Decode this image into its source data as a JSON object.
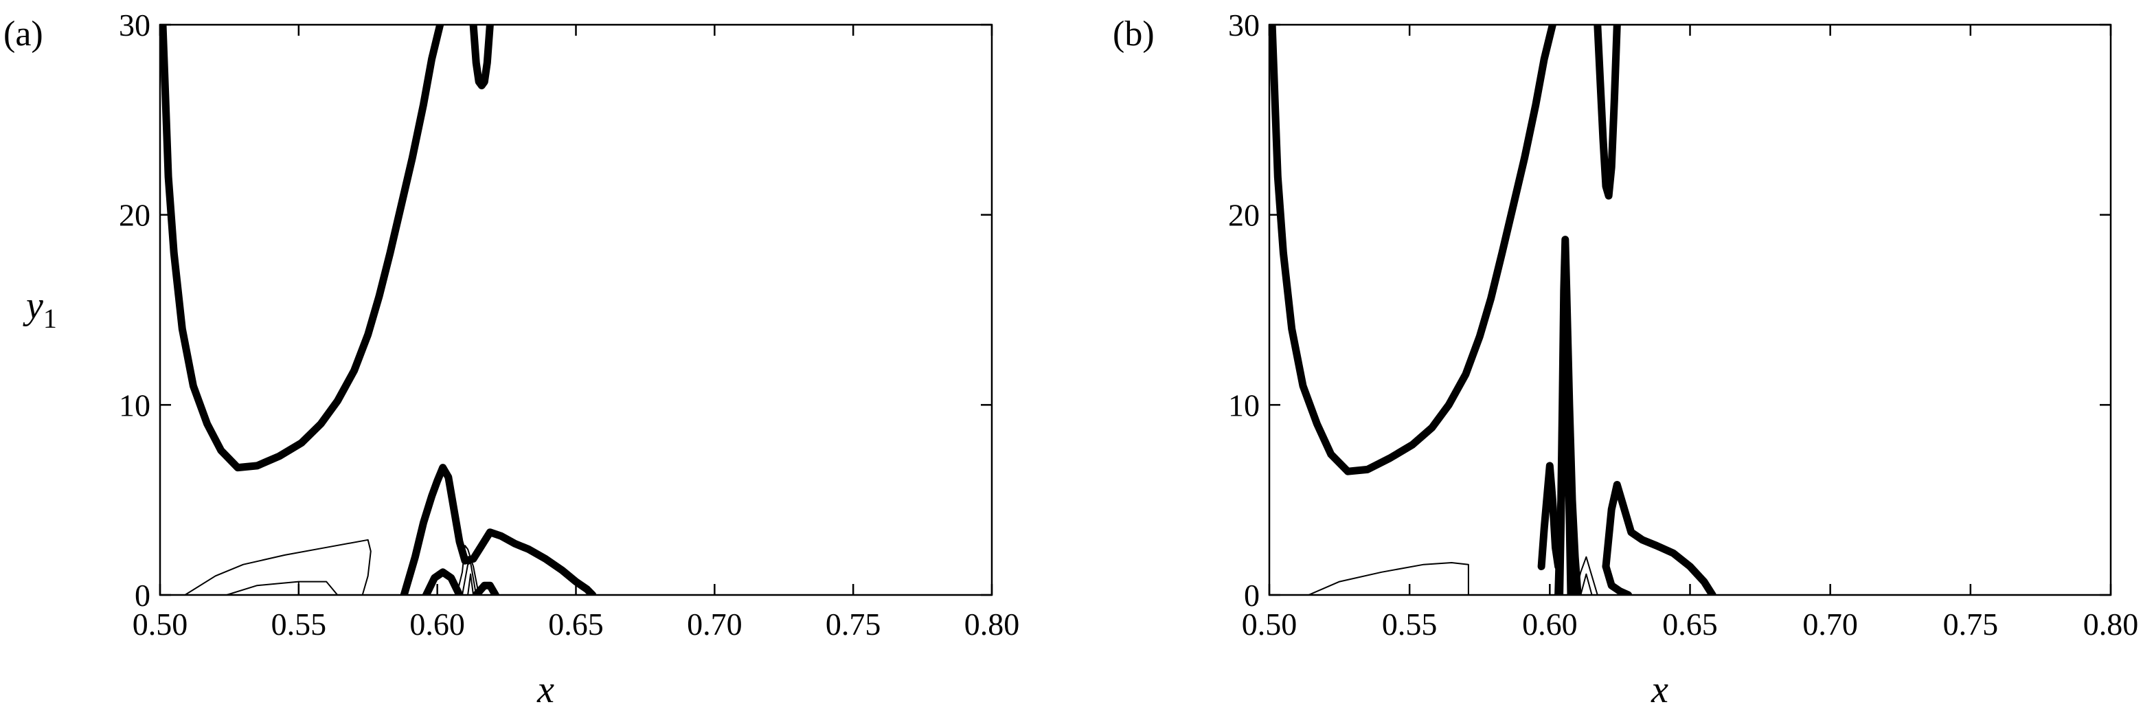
{
  "chart_data": [
    {
      "type": "line",
      "panel_label": "(a)",
      "xlabel": "x",
      "ylabel": "y",
      "ylabel_sub": "1",
      "xlim": [
        0.5,
        0.8
      ],
      "ylim": [
        0,
        30
      ],
      "x_ticks": [
        0.5,
        0.55,
        0.6,
        0.65,
        0.7,
        0.75,
        0.8
      ],
      "x_tick_labels": [
        "0.50",
        "0.55",
        "0.60",
        "0.65",
        "0.70",
        "0.75",
        "0.80"
      ],
      "y_ticks": [
        0,
        10,
        20,
        30
      ],
      "y_tick_labels": [
        "0",
        "10",
        "20",
        "30"
      ],
      "series": [
        {
          "style": "thick",
          "x": [
            0.501,
            0.502,
            0.503,
            0.505,
            0.508,
            0.512,
            0.517,
            0.522,
            0.528,
            0.535,
            0.543,
            0.551,
            0.558,
            0.564,
            0.57,
            0.575,
            0.579,
            0.583,
            0.587,
            0.591,
            0.595,
            0.598,
            0.601
          ],
          "y": [
            30,
            26,
            22,
            18,
            14,
            11,
            9,
            7.6,
            6.7,
            6.8,
            7.3,
            8,
            9,
            10.2,
            11.8,
            13.7,
            15.7,
            18,
            20.5,
            23,
            25.8,
            28.2,
            30
          ]
        },
        {
          "style": "thick",
          "x": [
            0.613,
            0.614,
            0.615,
            0.616,
            0.617,
            0.618,
            0.619
          ],
          "y": [
            30,
            28,
            27,
            26.8,
            27,
            28,
            30
          ]
        },
        {
          "style": "thick",
          "x": [
            0.588,
            0.592,
            0.595,
            0.598,
            0.6,
            0.602,
            0.604,
            0.606,
            0.608,
            0.61,
            0.613,
            0.616,
            0.619,
            0.623,
            0.628,
            0.633,
            0.639,
            0.645,
            0.65,
            0.654,
            0.656
          ],
          "y": [
            0,
            2,
            3.8,
            5.2,
            6,
            6.7,
            6.2,
            4.5,
            2.8,
            1.8,
            1.9,
            2.6,
            3.3,
            3.1,
            2.7,
            2.4,
            1.9,
            1.3,
            0.7,
            0.3,
            0
          ]
        },
        {
          "style": "thick",
          "x": [
            0.596,
            0.599,
            0.602,
            0.605,
            0.607,
            0.608
          ],
          "y": [
            0,
            0.9,
            1.2,
            0.9,
            0.3,
            0
          ]
        },
        {
          "style": "thick",
          "x": [
            0.614,
            0.617,
            0.619,
            0.621
          ],
          "y": [
            0,
            0.5,
            0.5,
            0
          ]
        },
        {
          "style": "thin",
          "x": [
            0.509,
            0.52,
            0.53,
            0.545,
            0.56,
            0.575,
            0.576,
            0.575,
            0.573
          ],
          "y": [
            0,
            1,
            1.6,
            2.1,
            2.5,
            2.9,
            2.3,
            1,
            0
          ]
        },
        {
          "style": "thin",
          "x": [
            0.524,
            0.535,
            0.55,
            0.56,
            0.564
          ],
          "y": [
            0,
            0.5,
            0.7,
            0.7,
            0
          ]
        },
        {
          "style": "thin",
          "x": [
            0.55,
            0.55
          ],
          "y": [
            0,
            0.7
          ]
        },
        {
          "style": "thin",
          "x": [
            0.607,
            0.609,
            0.61,
            0.611,
            0.613,
            0.615
          ],
          "y": [
            0,
            1.2,
            2.6,
            2.4,
            1.5,
            0
          ]
        },
        {
          "style": "thin",
          "x": [
            0.609,
            0.611,
            0.612,
            0.614
          ],
          "y": [
            0,
            1.6,
            1.7,
            0
          ]
        },
        {
          "style": "thin",
          "x": [
            0.611,
            0.612,
            0.613
          ],
          "y": [
            0,
            1.1,
            0
          ]
        }
      ]
    },
    {
      "type": "line",
      "panel_label": "(b)",
      "xlabel": "x",
      "xlim": [
        0.5,
        0.8
      ],
      "ylim": [
        0,
        30
      ],
      "x_ticks": [
        0.5,
        0.55,
        0.6,
        0.65,
        0.7,
        0.75,
        0.8
      ],
      "x_tick_labels": [
        "0.50",
        "0.55",
        "0.60",
        "0.65",
        "0.70",
        "0.75",
        "0.80"
      ],
      "y_ticks": [
        0,
        10,
        20,
        30
      ],
      "y_tick_labels": [
        "0",
        "10",
        "20",
        "30"
      ],
      "series": [
        {
          "style": "thick",
          "x": [
            0.501,
            0.502,
            0.503,
            0.505,
            0.508,
            0.512,
            0.517,
            0.522,
            0.528,
            0.535,
            0.543,
            0.551,
            0.558,
            0.564,
            0.57,
            0.575,
            0.579,
            0.583,
            0.587,
            0.591,
            0.595,
            0.598,
            0.601
          ],
          "y": [
            30,
            26,
            22,
            18,
            14,
            11,
            9,
            7.4,
            6.5,
            6.6,
            7.2,
            7.9,
            8.8,
            10,
            11.6,
            13.6,
            15.6,
            18,
            20.5,
            23,
            25.8,
            28.2,
            30
          ]
        },
        {
          "style": "thick",
          "x": [
            0.617,
            0.618,
            0.619,
            0.62,
            0.621,
            0.622,
            0.623,
            0.624
          ],
          "y": [
            30,
            27,
            24,
            21.5,
            21,
            22.5,
            26,
            30
          ]
        },
        {
          "style": "thick",
          "x": [
            0.597,
            0.598,
            0.6,
            0.601,
            0.602,
            0.603
          ],
          "y": [
            1.5,
            3.5,
            6.8,
            5,
            2.5,
            1.5
          ]
        },
        {
          "style": "thick",
          "x": [
            0.603,
            0.604,
            0.6045,
            0.605,
            0.6055,
            0.606,
            0.607,
            0.608,
            0.609,
            0.61
          ],
          "y": [
            0,
            5,
            10,
            16,
            18.7,
            16,
            10,
            5,
            2,
            0
          ]
        },
        {
          "style": "thick",
          "x": [
            0.6035,
            0.605,
            0.606,
            0.6075
          ],
          "y": [
            0,
            12,
            12,
            0
          ]
        },
        {
          "style": "thick",
          "x": [
            0.62,
            0.622,
            0.624,
            0.626,
            0.629,
            0.633,
            0.638,
            0.644,
            0.65,
            0.655,
            0.658
          ],
          "y": [
            1.5,
            4.5,
            5.8,
            4.8,
            3.3,
            2.9,
            2.6,
            2.2,
            1.5,
            0.7,
            0
          ]
        },
        {
          "style": "thick",
          "x": [
            0.62,
            0.622,
            0.625,
            0.628
          ],
          "y": [
            1.5,
            0.5,
            0.2,
            0
          ]
        },
        {
          "style": "thin",
          "x": [
            0.514,
            0.525,
            0.54,
            0.555,
            0.565,
            0.571,
            0.571
          ],
          "y": [
            0,
            0.7,
            1.2,
            1.6,
            1.7,
            1.6,
            0
          ]
        },
        {
          "style": "thin",
          "x": [
            0.609,
            0.611,
            0.613,
            0.615,
            0.617
          ],
          "y": [
            0,
            1.2,
            2,
            1,
            0
          ]
        },
        {
          "style": "thin",
          "x": [
            0.611,
            0.613,
            0.615
          ],
          "y": [
            0,
            1.1,
            0
          ]
        }
      ]
    }
  ]
}
